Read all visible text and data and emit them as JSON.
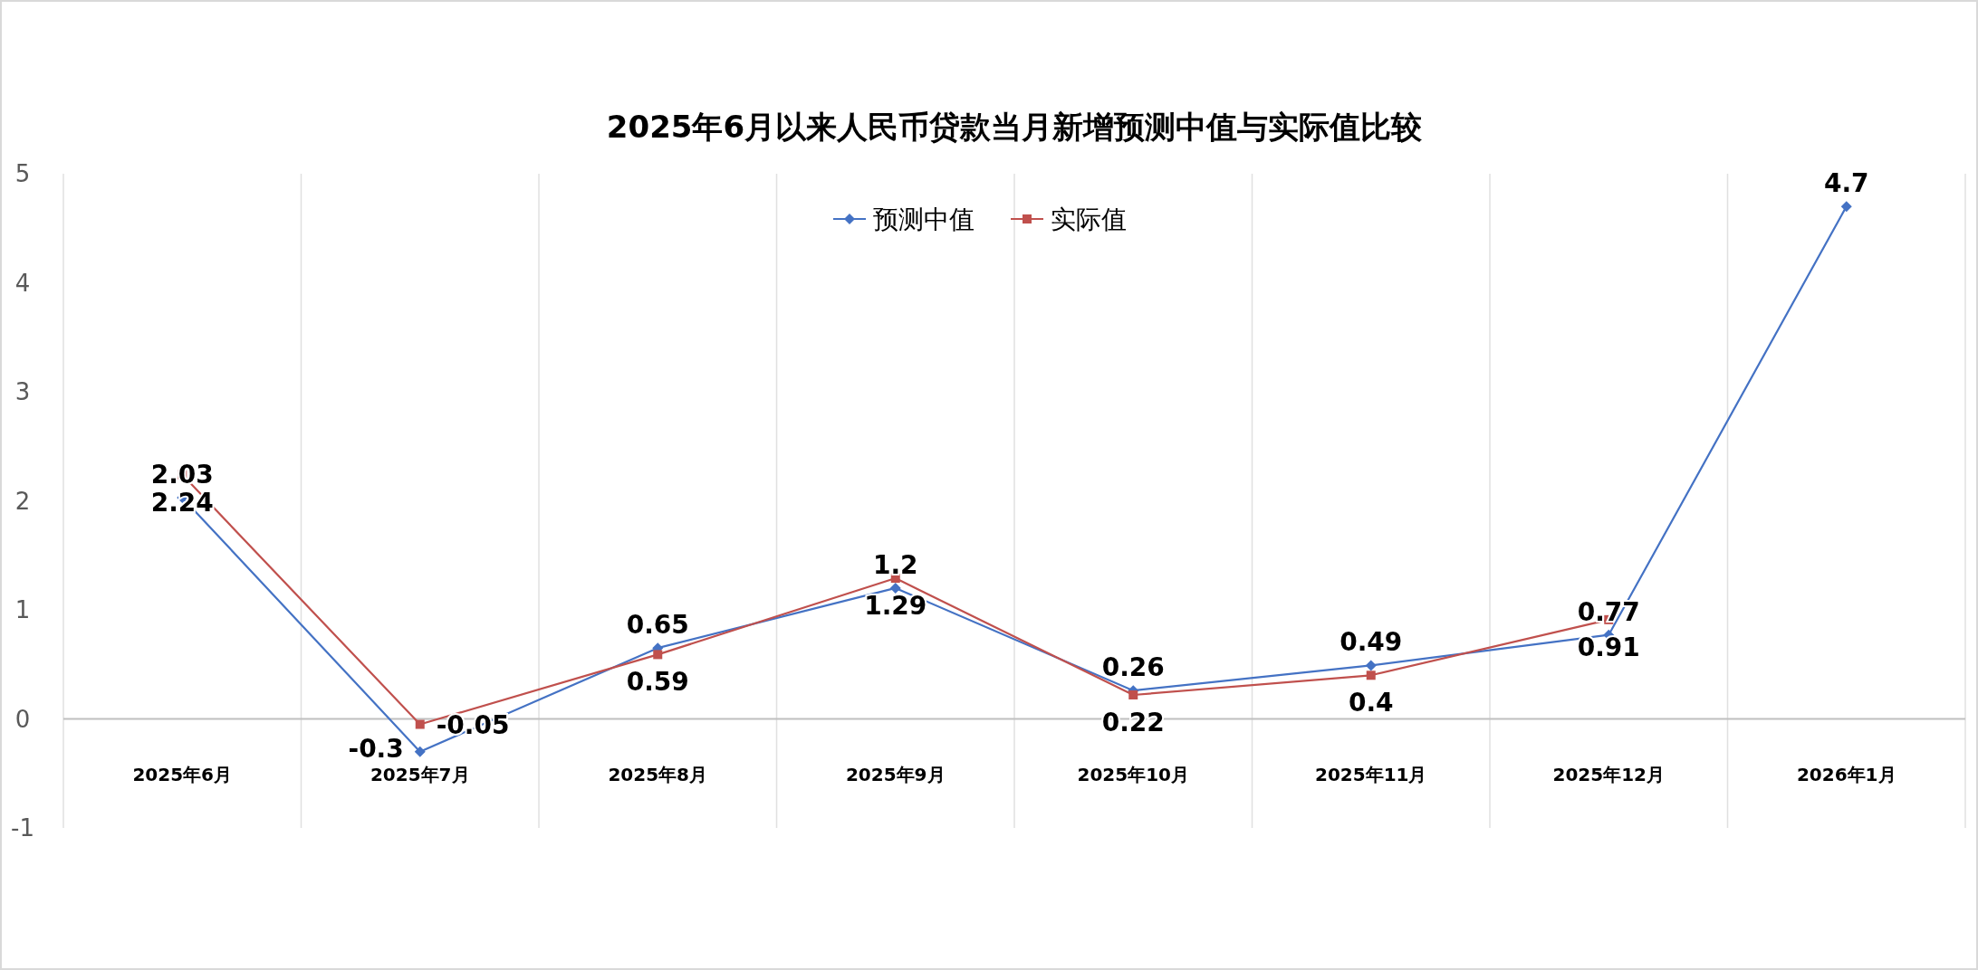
{
  "chart_data": {
    "type": "line",
    "title": "2025年6月以来人民币贷款当月新增预测中值与实际值比较",
    "categories": [
      "2025年6月",
      "2025年7月",
      "2025年8月",
      "2025年9月",
      "2025年10月",
      "2025年11月",
      "2025年12月",
      "2026年1月"
    ],
    "series": [
      {
        "name": "预测中值",
        "color": "#4472c4",
        "marker": "diamond",
        "values": [
          2.03,
          -0.3,
          0.65,
          1.2,
          0.26,
          0.49,
          0.77,
          4.7
        ]
      },
      {
        "name": "实际值",
        "color": "#c0504d",
        "marker": "square",
        "values": [
          2.24,
          -0.05,
          0.59,
          1.29,
          0.22,
          0.4,
          0.91,
          null
        ]
      }
    ],
    "ylim": [
      -1,
      5
    ],
    "yticks": [
      -1,
      0,
      1,
      2,
      3,
      4,
      5
    ],
    "grid": "x",
    "legend": "top",
    "data_labels": true,
    "line_style": "solid"
  }
}
